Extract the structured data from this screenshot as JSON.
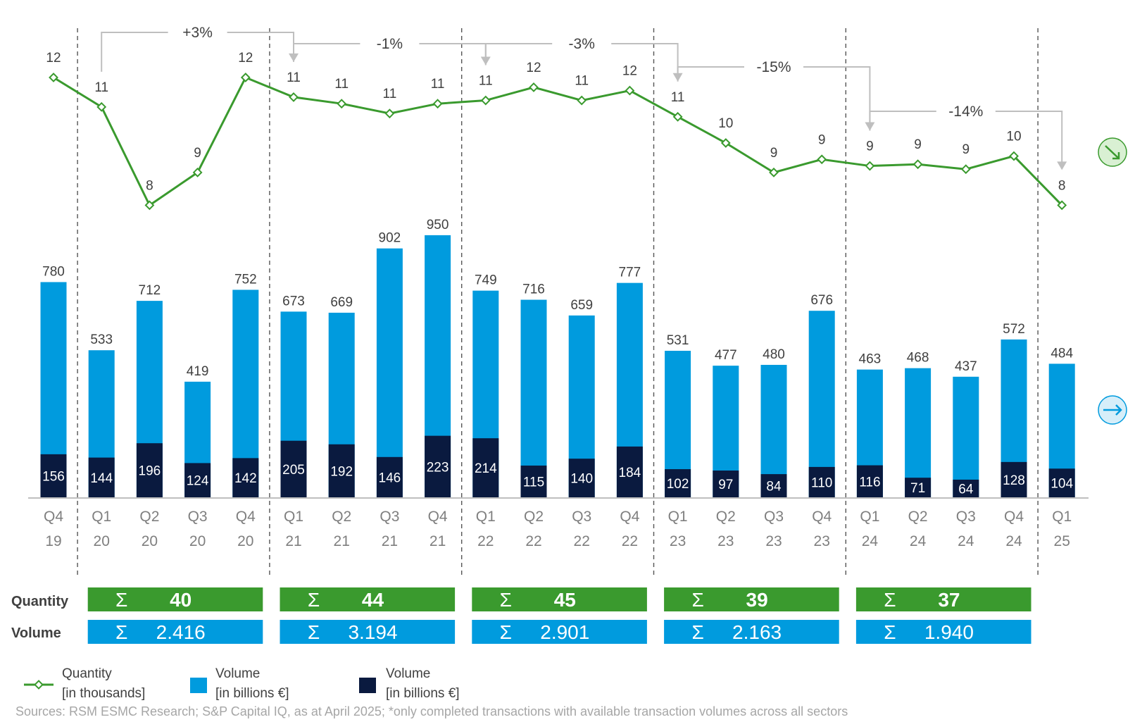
{
  "chart_data": {
    "type": "bar",
    "categories": [
      {
        "q": "Q4",
        "y": "19"
      },
      {
        "q": "Q1",
        "y": "20"
      },
      {
        "q": "Q2",
        "y": "20"
      },
      {
        "q": "Q3",
        "y": "20"
      },
      {
        "q": "Q4",
        "y": "20"
      },
      {
        "q": "Q1",
        "y": "21"
      },
      {
        "q": "Q2",
        "y": "21"
      },
      {
        "q": "Q3",
        "y": "21"
      },
      {
        "q": "Q4",
        "y": "21"
      },
      {
        "q": "Q1",
        "y": "22"
      },
      {
        "q": "Q2",
        "y": "22"
      },
      {
        "q": "Q3",
        "y": "22"
      },
      {
        "q": "Q4",
        "y": "22"
      },
      {
        "q": "Q1",
        "y": "23"
      },
      {
        "q": "Q2",
        "y": "23"
      },
      {
        "q": "Q3",
        "y": "23"
      },
      {
        "q": "Q4",
        "y": "23"
      },
      {
        "q": "Q1",
        "y": "24"
      },
      {
        "q": "Q2",
        "y": "24"
      },
      {
        "q": "Q3",
        "y": "24"
      },
      {
        "q": "Q4",
        "y": "24"
      },
      {
        "q": "Q1",
        "y": "25"
      }
    ],
    "series": [
      {
        "name": "Quantity [in thousands]",
        "type": "line",
        "color": "#3a9a2e",
        "values": [
          12,
          11,
          8,
          9,
          12,
          11,
          11,
          11,
          11,
          11,
          12,
          11,
          12,
          11,
          10,
          9,
          9,
          9,
          9,
          9,
          10,
          8
        ],
        "y_rank": [
          12.0,
          11.1,
          8.1,
          9.1,
          12.0,
          11.4,
          11.2,
          10.9,
          11.2,
          11.3,
          11.7,
          11.3,
          11.6,
          10.8,
          10.0,
          9.1,
          9.5,
          9.3,
          9.35,
          9.2,
          9.6,
          8.1
        ]
      },
      {
        "name": "Volume [in billions €]",
        "type": "bar",
        "color": "#009bde",
        "values": [
          780,
          533,
          712,
          419,
          752,
          673,
          669,
          902,
          950,
          749,
          716,
          659,
          777,
          531,
          477,
          480,
          676,
          463,
          468,
          437,
          572,
          484
        ]
      },
      {
        "name": "Volume [in billions €]",
        "type": "bar",
        "color": "#0a1a3f",
        "values": [
          156,
          144,
          196,
          124,
          142,
          205,
          192,
          146,
          223,
          214,
          115,
          140,
          184,
          102,
          97,
          84,
          110,
          116,
          71,
          64,
          128,
          104
        ]
      }
    ],
    "changes": [
      {
        "label": "+3%",
        "from": 1,
        "to": 5
      },
      {
        "label": "-1%",
        "from": 5,
        "to": 9
      },
      {
        "label": "-3%",
        "from": 9,
        "to": 13
      },
      {
        "label": "-15%",
        "from": 13,
        "to": 17
      },
      {
        "label": "-14%",
        "from": 17,
        "to": 21
      }
    ],
    "annual_totals": {
      "quantity_label": "Quantity",
      "volume_label": "Volume",
      "sigma": "Σ",
      "quantity": [
        "40",
        "44",
        "45",
        "39",
        "37"
      ],
      "volume": [
        "2.416",
        "3.194",
        "2.901",
        "2.163",
        "1.940"
      ],
      "quantity_color": "#3a9a2e",
      "volume_color": "#009bde"
    },
    "legend": [
      {
        "line1": "Quantity",
        "line2": "[in thousands]"
      },
      {
        "line1": "Volume",
        "line2": "[in billions €]"
      },
      {
        "line1": "Volume",
        "line2": "[in billions €]"
      }
    ],
    "trend_icons": [
      "trend-down-icon",
      "trend-flat-icon"
    ],
    "grid": false
  },
  "source_note": "Sources: RSM ESMC Research; S&P Capital IQ, as at April 2025; *only completed transactions with available transaction volumes across all sectors"
}
